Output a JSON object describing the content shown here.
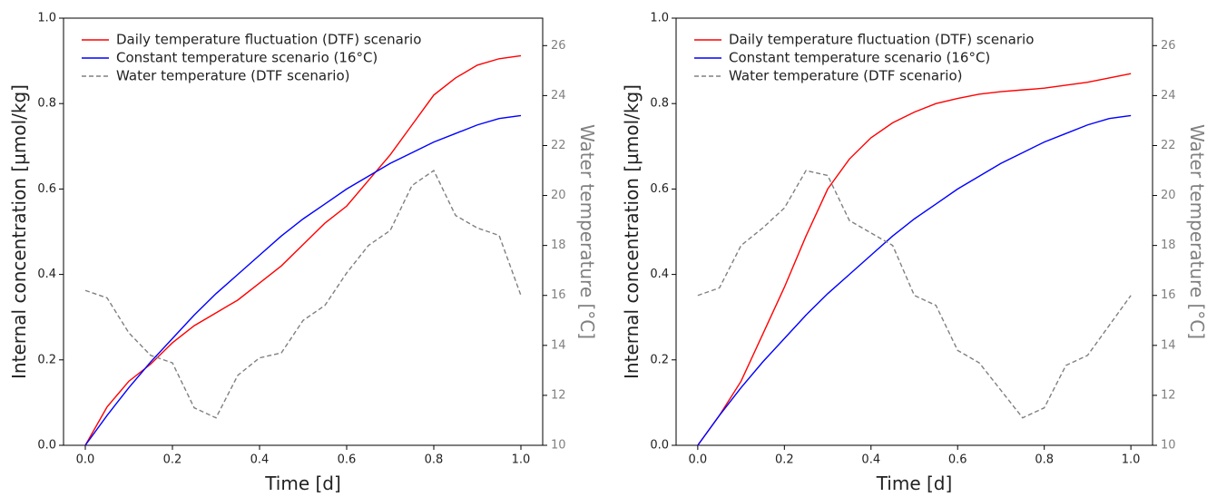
{
  "chart_data": [
    {
      "type": "line",
      "xlabel": "Time [d]",
      "ylabel": "Internal concentration [µmol/kg]",
      "y2label": "Water temperature [°C]",
      "x": [
        0,
        0.05,
        0.1,
        0.15,
        0.2,
        0.25,
        0.3,
        0.35,
        0.4,
        0.45,
        0.5,
        0.55,
        0.6,
        0.65,
        0.7,
        0.75,
        0.8,
        0.85,
        0.9,
        0.95,
        1.0
      ],
      "series": [
        {
          "name": "Daily temperature fluctuation (DTF) scenario",
          "color": "#ff0000",
          "linestyle": "solid",
          "values": [
            0,
            0.09,
            0.15,
            0.19,
            0.24,
            0.28,
            0.31,
            0.34,
            0.38,
            0.42,
            0.47,
            0.52,
            0.56,
            0.62,
            0.68,
            0.75,
            0.82,
            0.86,
            0.89,
            0.905,
            0.912
          ]
        },
        {
          "name": "Constant temperature scenario (16°C)",
          "color": "#0000ff",
          "linestyle": "solid",
          "values": [
            0,
            0.07,
            0.135,
            0.195,
            0.25,
            0.305,
            0.355,
            0.4,
            0.445,
            0.49,
            0.53,
            0.565,
            0.6,
            0.63,
            0.66,
            0.685,
            0.71,
            0.73,
            0.75,
            0.765,
            0.772
          ]
        },
        {
          "name": "Water temperature (DTF scenario)",
          "color": "#808080",
          "linestyle": "dashed",
          "axis": "y2",
          "values": [
            16.2,
            15.9,
            14.5,
            13.6,
            13.3,
            11.5,
            11.1,
            12.8,
            13.5,
            13.7,
            15.0,
            15.6,
            16.9,
            18.0,
            18.6,
            20.4,
            21.0,
            19.2,
            18.7,
            18.4,
            16.0
          ]
        }
      ],
      "xlim": [
        -0.05,
        1.05
      ],
      "xticks": [
        {
          "value": 0,
          "label": "0.0"
        },
        {
          "value": 0.2,
          "label": "0.2"
        },
        {
          "value": 0.4,
          "label": "0.4"
        },
        {
          "value": 0.6,
          "label": "0.6"
        },
        {
          "value": 0.8,
          "label": "0.8"
        },
        {
          "value": 1,
          "label": "1.0"
        }
      ],
      "ylim": [
        0,
        1
      ],
      "yticks": [
        {
          "value": 0,
          "label": "0.0"
        },
        {
          "value": 0.2,
          "label": "0.2"
        },
        {
          "value": 0.4,
          "label": "0.4"
        },
        {
          "value": 0.6,
          "label": "0.6"
        },
        {
          "value": 0.8,
          "label": "0.8"
        },
        {
          "value": 1,
          "label": "1.0"
        }
      ],
      "y2lim": [
        10,
        27.1
      ],
      "y2ticks": [
        10,
        12,
        14,
        16,
        18,
        20,
        22,
        24,
        26
      ],
      "legend": "upper left"
    },
    {
      "type": "line",
      "xlabel": "Time [d]",
      "ylabel": "Internal concentration [µmol/kg]",
      "y2label": "Water temperature [°C]",
      "x": [
        0,
        0.05,
        0.1,
        0.15,
        0.2,
        0.25,
        0.3,
        0.35,
        0.4,
        0.45,
        0.5,
        0.55,
        0.6,
        0.65,
        0.7,
        0.75,
        0.8,
        0.85,
        0.9,
        0.95,
        1.0
      ],
      "series": [
        {
          "name": "Daily temperature fluctuation (DTF) scenario",
          "color": "#ff0000",
          "linestyle": "solid",
          "values": [
            0,
            0.07,
            0.15,
            0.26,
            0.37,
            0.49,
            0.6,
            0.67,
            0.72,
            0.755,
            0.78,
            0.8,
            0.812,
            0.822,
            0.828,
            0.832,
            0.836,
            0.843,
            0.85,
            0.86,
            0.87
          ]
        },
        {
          "name": "Constant temperature scenario (16°C)",
          "color": "#0000ff",
          "linestyle": "solid",
          "values": [
            0,
            0.07,
            0.135,
            0.195,
            0.25,
            0.305,
            0.355,
            0.4,
            0.445,
            0.49,
            0.53,
            0.565,
            0.6,
            0.63,
            0.66,
            0.685,
            0.71,
            0.73,
            0.75,
            0.765,
            0.772
          ]
        },
        {
          "name": "Water temperature (DTF scenario)",
          "color": "#808080",
          "linestyle": "dashed",
          "axis": "y2",
          "values": [
            16.0,
            16.3,
            18.0,
            18.7,
            19.5,
            21.0,
            20.8,
            19.0,
            18.5,
            18.0,
            16.0,
            15.6,
            13.8,
            13.3,
            12.2,
            11.1,
            11.5,
            13.2,
            13.6,
            14.8,
            16.0
          ]
        }
      ],
      "xlim": [
        -0.05,
        1.05
      ],
      "xticks": [
        {
          "value": 0,
          "label": "0.0"
        },
        {
          "value": 0.2,
          "label": "0.2"
        },
        {
          "value": 0.4,
          "label": "0.4"
        },
        {
          "value": 0.6,
          "label": "0.6"
        },
        {
          "value": 0.8,
          "label": "0.8"
        },
        {
          "value": 1,
          "label": "1.0"
        }
      ],
      "ylim": [
        0,
        1
      ],
      "yticks": [
        {
          "value": 0,
          "label": "0.0"
        },
        {
          "value": 0.2,
          "label": "0.2"
        },
        {
          "value": 0.4,
          "label": "0.4"
        },
        {
          "value": 0.6,
          "label": "0.6"
        },
        {
          "value": 0.8,
          "label": "0.8"
        },
        {
          "value": 1,
          "label": "1.0"
        }
      ],
      "y2lim": [
        10,
        27.1
      ],
      "y2ticks": [
        10,
        12,
        14,
        16,
        18,
        20,
        22,
        24,
        26
      ],
      "legend": "upper left"
    }
  ]
}
